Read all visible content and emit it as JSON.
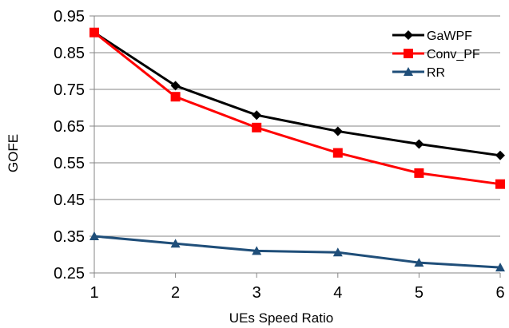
{
  "chart_data": {
    "type": "line",
    "xlabel": "UEs Speed Ratio",
    "ylabel": "GOFE",
    "x": [
      1,
      2,
      3,
      4,
      5,
      6
    ],
    "xlim": [
      1,
      6
    ],
    "ylim": [
      0.25,
      0.95
    ],
    "yticks": [
      "0.95",
      "0.85",
      "0.75",
      "0.65",
      "0.55",
      "0.45",
      "0.35",
      "0.25"
    ],
    "xticks": [
      "1",
      "2",
      "3",
      "4",
      "5",
      "6"
    ],
    "grid": "horizontal",
    "legend_position": "top-right",
    "series": [
      {
        "name": "GaWPF",
        "color": "#000000",
        "marker": "diamond",
        "values": [
          0.905,
          0.76,
          0.68,
          0.636,
          0.601,
          0.57
        ]
      },
      {
        "name": "Conv_PF",
        "color": "#ff0000",
        "marker": "square",
        "values": [
          0.905,
          0.73,
          0.646,
          0.577,
          0.522,
          0.492
        ]
      },
      {
        "name": "RR",
        "color": "#1f4e79",
        "marker": "triangle",
        "values": [
          0.35,
          0.33,
          0.31,
          0.306,
          0.278,
          0.265
        ]
      }
    ]
  }
}
